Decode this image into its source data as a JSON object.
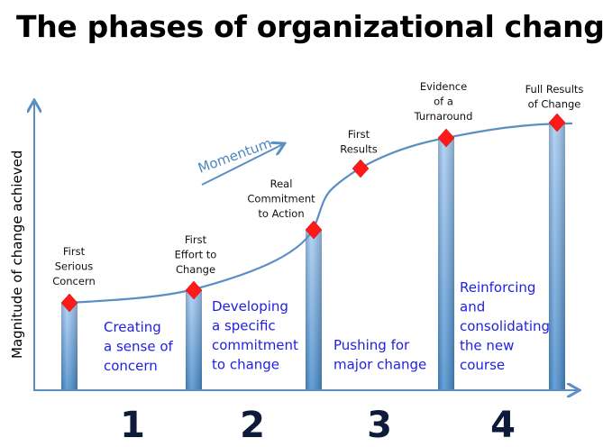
{
  "title": "The phases of organizational change",
  "y_axis_label": "Magnitude of change achieved",
  "momentum_label": "Momentum",
  "colors": {
    "axis": "#5b8fc4",
    "bar": "#7fb0e4",
    "marker": "#ff1a1a",
    "phase_text": "#1f1fe0",
    "number": "#0d1a3a"
  },
  "milestones": [
    {
      "lines": [
        "First",
        "Serious",
        "Concern"
      ]
    },
    {
      "lines": [
        "First",
        "Effort to",
        "Change"
      ]
    },
    {
      "lines": [
        "Real",
        "Commitment",
        "to Action"
      ]
    },
    {
      "lines": [
        "First",
        "Results"
      ]
    },
    {
      "lines": [
        "Evidence",
        "of a",
        "Turnaround"
      ]
    },
    {
      "lines": [
        "Full Results",
        "of Change"
      ]
    }
  ],
  "phases": [
    {
      "number": "1",
      "lines": [
        "Creating",
        "a sense of",
        "concern"
      ]
    },
    {
      "number": "2",
      "lines": [
        "Developing",
        "a specific",
        "commitment",
        "to change"
      ]
    },
    {
      "number": "3",
      "lines": [
        "Pushing for",
        "major change"
      ]
    },
    {
      "number": "4",
      "lines": [
        "Reinforcing",
        "and",
        "consolidating",
        "the new",
        "course"
      ]
    }
  ]
}
